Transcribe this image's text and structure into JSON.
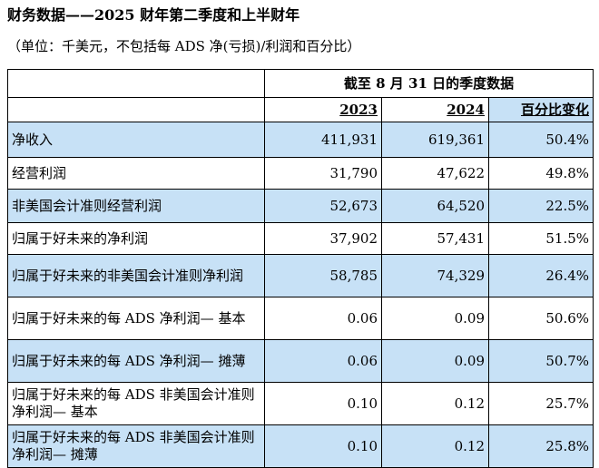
{
  "title": "财务数据——2025 财年第二季度和上半财年",
  "subtitle": "（单位：千美元，不包括每 ADS 净(亏损)/利润和百分比）",
  "table": {
    "period_header": "截至 8 月 31 日的季度数据",
    "columns": [
      "2023",
      "2024",
      "百分比变化"
    ],
    "rows": [
      {
        "label": "净收入",
        "y2023": "411,931",
        "y2024": "619,361",
        "change": "50.4%"
      },
      {
        "label": "经营利润",
        "y2023": "31,790",
        "y2024": "47,622",
        "change": "49.8%"
      },
      {
        "label": "非美国会计准则经营利润",
        "y2023": "52,673",
        "y2024": "64,520",
        "change": "22.5%"
      },
      {
        "label": "归属于好未来的净利润",
        "y2023": "37,902",
        "y2024": "57,431",
        "change": "51.5%"
      },
      {
        "label": "归属于好未来的非美国会计准则净利润",
        "y2023": "58,785",
        "y2024": "74,329",
        "change": "26.4%"
      },
      {
        "label": "归属于好未来的每 ADS 净利润— 基本",
        "y2023": "0.06",
        "y2024": "0.09",
        "change": "50.6%"
      },
      {
        "label": "归属于好未来的每 ADS 净利润— 摊薄",
        "y2023": "0.06",
        "y2024": "0.09",
        "change": "50.7%"
      },
      {
        "label": "归属于好未来的每 ADS 非美国会计准则净利润— 基本",
        "y2023": "0.10",
        "y2024": "0.12",
        "change": "25.7%"
      },
      {
        "label": "归属于好未来的每 ADS 非美国会计准则净利润— 摊薄",
        "y2023": "0.10",
        "y2024": "0.12",
        "change": "25.8%"
      }
    ]
  },
  "colors": {
    "row_shade": "#c7e1f6",
    "border": "#000000"
  }
}
